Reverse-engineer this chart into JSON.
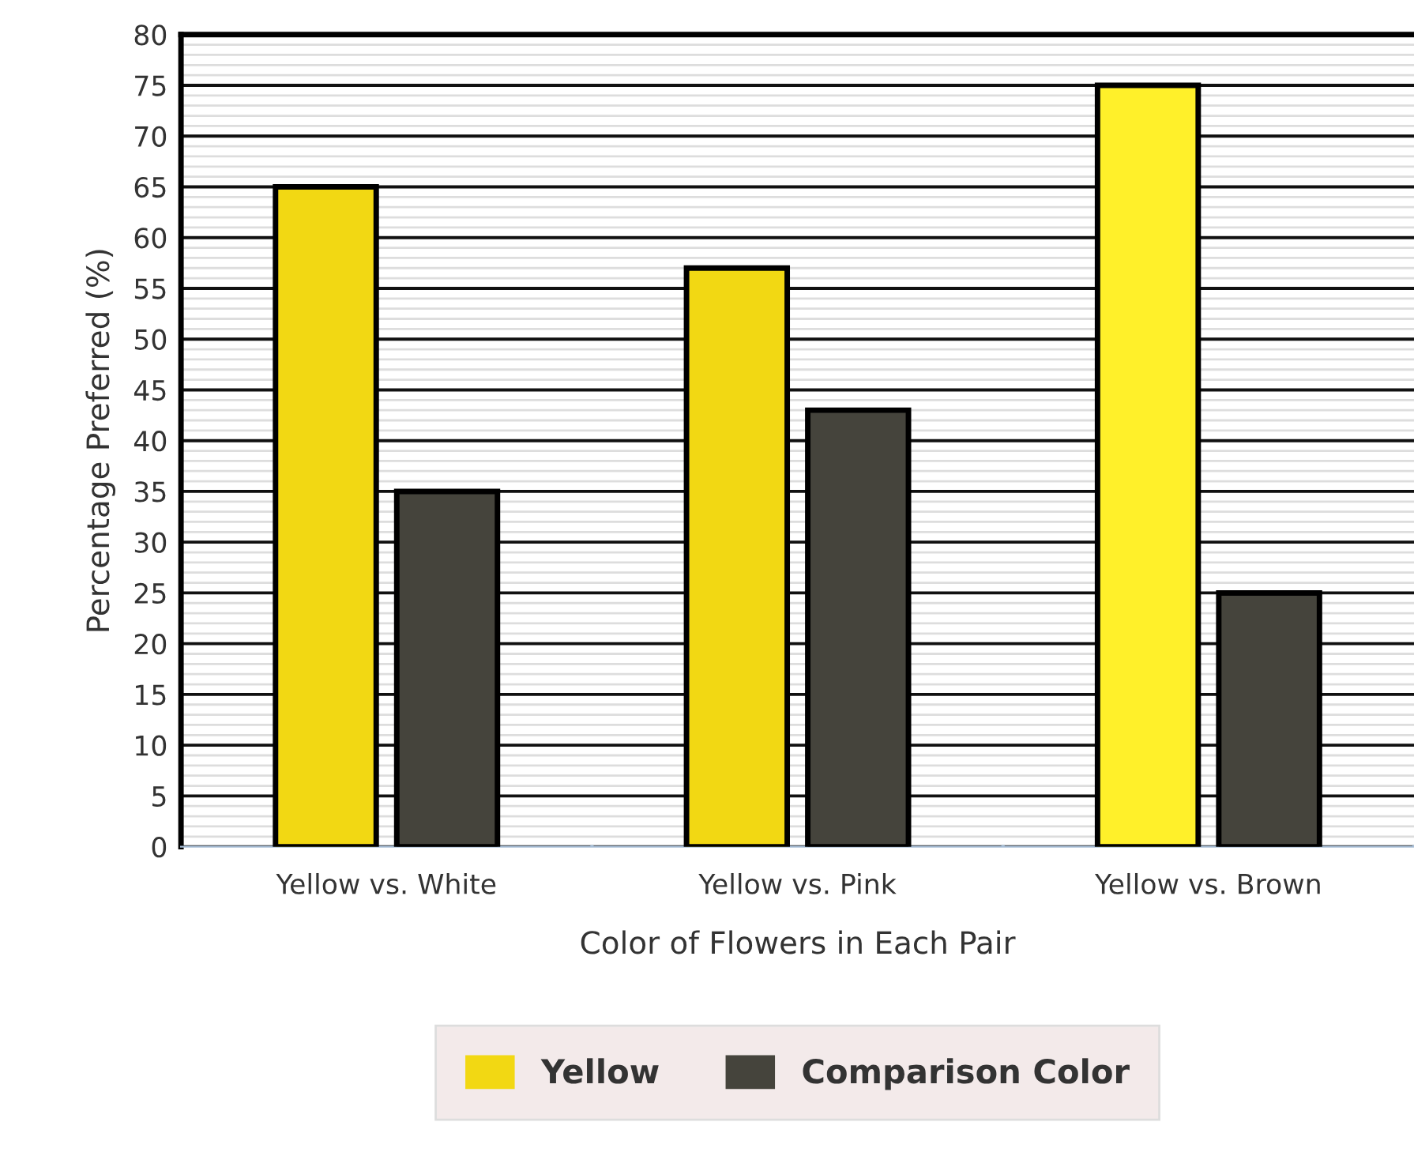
{
  "chart_data": {
    "type": "bar",
    "xlabel": "Color of Flowers in Each Pair",
    "ylabel": "Percentage Preferred (%)",
    "categories": [
      "Yellow vs. White",
      "Yellow vs. Pink",
      "Yellow vs. Brown"
    ],
    "series": [
      {
        "name": "Yellow",
        "color": "#f2d813",
        "colors": [
          "#f2d813",
          "#f2d813",
          "#fff02a"
        ],
        "values": [
          65,
          57,
          75
        ]
      },
      {
        "name": "Comparison Color",
        "color": "#45443c",
        "values": [
          35,
          43,
          25
        ]
      }
    ],
    "ylim": [
      0,
      80
    ],
    "yticks": [
      0,
      5,
      10,
      15,
      20,
      25,
      30,
      35,
      40,
      45,
      50,
      55,
      60,
      65,
      70,
      75,
      80
    ],
    "grid": "y",
    "legend": "bottom"
  }
}
